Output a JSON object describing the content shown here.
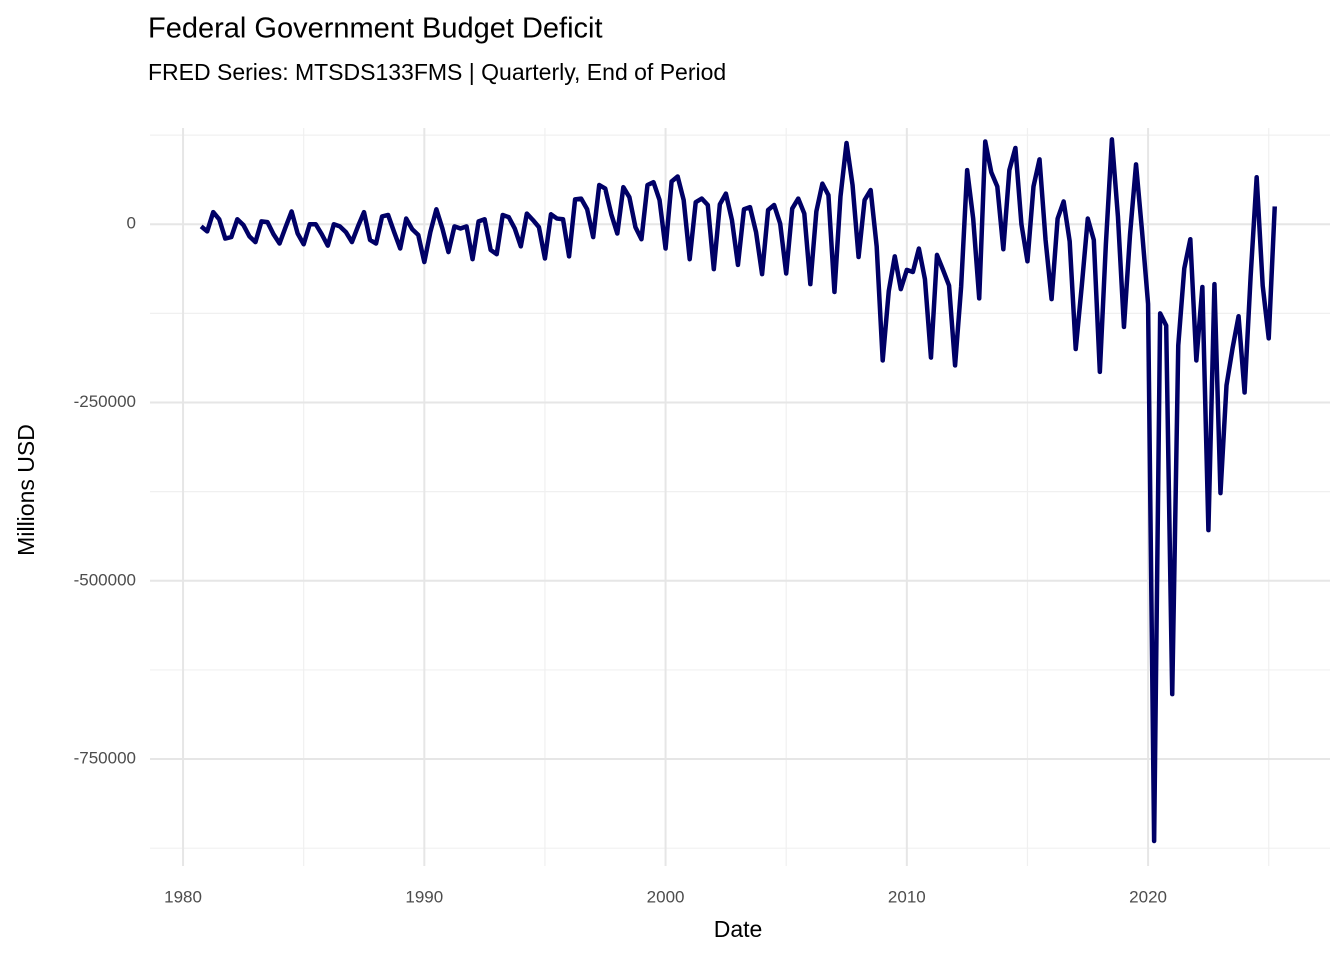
{
  "chart_data": {
    "type": "line",
    "title": "Federal Government Budget Deficit",
    "subtitle": "FRED Series: MTSDS133FMS | Quarterly, End of Period",
    "x_label": "Date",
    "y_label": "Millions USD",
    "xlim": [
      1978.63,
      2027.54
    ],
    "ylim": [
      -900000,
      135000
    ],
    "xticks": [
      1980,
      1990,
      2000,
      2010,
      2020
    ],
    "yticks": [
      -750000,
      -500000,
      -250000,
      0
    ],
    "grid": true,
    "x": [
      1980.75,
      1981,
      1981.25,
      1981.5,
      1981.75,
      1982,
      1982.25,
      1982.5,
      1982.75,
      1983,
      1983.25,
      1983.5,
      1983.75,
      1984,
      1984.25,
      1984.5,
      1984.75,
      1985,
      1985.25,
      1985.5,
      1985.75,
      1986,
      1986.25,
      1986.5,
      1986.75,
      1987,
      1987.25,
      1987.5,
      1987.75,
      1988,
      1988.25,
      1988.5,
      1988.75,
      1989,
      1989.25,
      1989.5,
      1989.75,
      1990,
      1990.25,
      1990.5,
      1990.75,
      1991,
      1991.25,
      1991.5,
      1991.75,
      1992,
      1992.25,
      1992.5,
      1992.75,
      1993,
      1993.25,
      1993.5,
      1993.75,
      1994,
      1994.25,
      1994.5,
      1994.75,
      1995,
      1995.25,
      1995.5,
      1995.75,
      1996,
      1996.25,
      1996.5,
      1996.75,
      1997,
      1997.25,
      1997.5,
      1997.75,
      1998,
      1998.25,
      1998.5,
      1998.75,
      1999,
      1999.25,
      1999.5,
      1999.75,
      2000,
      2000.25,
      2000.5,
      2000.75,
      2001,
      2001.25,
      2001.5,
      2001.75,
      2002,
      2002.25,
      2002.5,
      2002.75,
      2003,
      2003.25,
      2003.5,
      2003.75,
      2004,
      2004.25,
      2004.5,
      2004.75,
      2005,
      2005.25,
      2005.5,
      2005.75,
      2006,
      2006.25,
      2006.5,
      2006.75,
      2007,
      2007.25,
      2007.5,
      2007.75,
      2008,
      2008.25,
      2008.5,
      2008.75,
      2009,
      2009.25,
      2009.5,
      2009.75,
      2010,
      2010.25,
      2010.5,
      2010.75,
      2011,
      2011.25,
      2011.5,
      2011.75,
      2012,
      2012.25,
      2012.5,
      2012.75,
      2013,
      2013.25,
      2013.5,
      2013.75,
      2014,
      2014.25,
      2014.5,
      2014.75,
      2015,
      2015.25,
      2015.5,
      2015.75,
      2016,
      2016.25,
      2016.5,
      2016.75,
      2017,
      2017.25,
      2017.5,
      2017.75,
      2018,
      2018.25,
      2018.5,
      2018.75,
      2019,
      2019.25,
      2019.5,
      2019.75,
      2020,
      2020.25,
      2020.5,
      2020.75,
      2021,
      2021.25,
      2021.5,
      2021.75,
      2022,
      2022.25,
      2022.5,
      2022.75,
      2023,
      2023.25,
      2023.5,
      2023.75,
      2024,
      2024.25,
      2024.5,
      2024.75,
      2025,
      2025.25
    ],
    "series": [
      {
        "name": "MTSDS133FMS",
        "color": "#000066",
        "values": [
          -3000,
          -10000,
          17000,
          7000,
          -20000,
          -18000,
          7000,
          -1000,
          -17000,
          -25000,
          4000,
          3000,
          -14000,
          -27000,
          -4000,
          18000,
          -13000,
          -28000,
          0,
          0,
          -14000,
          -30000,
          0,
          -3000,
          -11000,
          -25000,
          -3000,
          17000,
          -22000,
          -27000,
          11000,
          13000,
          -11000,
          -34000,
          8000,
          -7000,
          -15000,
          -53000,
          -11000,
          21000,
          -6000,
          -39000,
          -3000,
          -6000,
          -3000,
          -49000,
          4000,
          7000,
          -36000,
          -42000,
          13000,
          10000,
          -6000,
          -31000,
          15000,
          6000,
          -4000,
          -48000,
          14000,
          8000,
          7000,
          -45000,
          35000,
          36000,
          21000,
          -18000,
          55000,
          50000,
          14000,
          -13000,
          52000,
          38000,
          -4000,
          -21000,
          55000,
          59000,
          34000,
          -34000,
          60000,
          67000,
          34000,
          -49000,
          31000,
          36000,
          27000,
          -63000,
          28000,
          43000,
          6000,
          -57000,
          21000,
          24000,
          -11000,
          -70000,
          20000,
          27000,
          1000,
          -69000,
          22000,
          36000,
          15000,
          -84000,
          18000,
          57000,
          41000,
          -95000,
          39000,
          114000,
          55000,
          -46000,
          34000,
          48000,
          -31000,
          -191000,
          -94000,
          -45000,
          -91000,
          -64000,
          -67000,
          -34000,
          -77000,
          -187000,
          -43000,
          -64000,
          -86000,
          -198000,
          -88000,
          76000,
          8000,
          -104000,
          116000,
          73000,
          53000,
          -35000,
          76000,
          107000,
          0,
          -52000,
          53000,
          91000,
          -22000,
          -105000,
          8000,
          32000,
          -24000,
          -175000,
          -87000,
          8000,
          -22000,
          -207000,
          -28000,
          119000,
          11000,
          -144000,
          -15000,
          84000,
          -10000,
          -112000,
          -865000,
          -125000,
          -142000,
          -659000,
          -170000,
          -62000,
          -21000,
          -191000,
          -88000,
          -429000,
          -84000,
          -377000,
          -226000,
          -174000,
          -129000,
          -236000,
          -73000,
          66000,
          -86000,
          -160000,
          25000
        ]
      }
    ]
  }
}
